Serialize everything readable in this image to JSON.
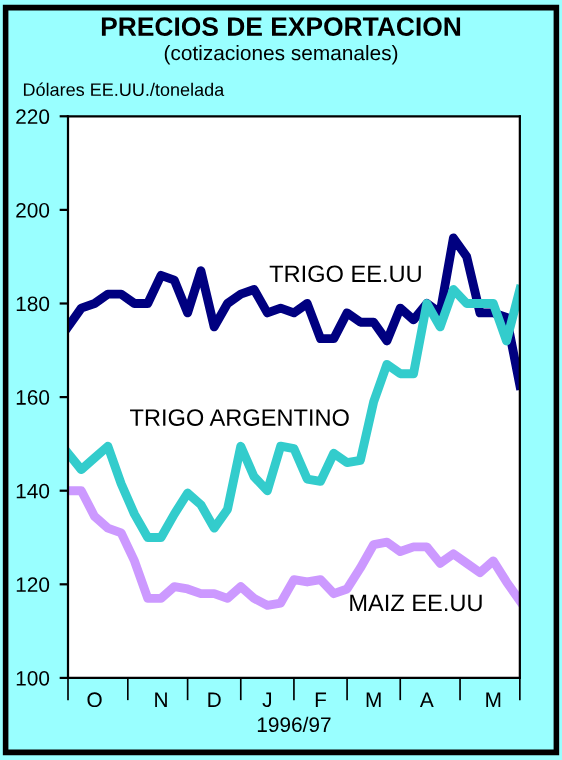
{
  "chart_data": {
    "type": "line",
    "title": "PRECIOS DE EXPORTACION",
    "subtitle": "(cotizaciones semanales)",
    "ylabel": "Dólares EE.UU./tonelada",
    "xlabel": "1996/97",
    "categories": [
      null,
      null,
      "O",
      null,
      null,
      null,
      null,
      "N",
      null,
      null,
      null,
      "D",
      null,
      null,
      null,
      "J",
      null,
      null,
      null,
      "F",
      null,
      null,
      null,
      "M",
      null,
      null,
      null,
      "A",
      null,
      null,
      null,
      null,
      "M",
      null,
      null
    ],
    "ylim": [
      100,
      220
    ],
    "yticks": [
      100,
      120,
      140,
      160,
      180,
      200,
      220
    ],
    "grid": false,
    "legend": false,
    "marker": "none",
    "line_style": "solid",
    "series": [
      {
        "name": "TRIGO EE.UU",
        "color": "#000080",
        "values": [
          175,
          179,
          180,
          182,
          182,
          180,
          180,
          186,
          185,
          178,
          187,
          175,
          180,
          182,
          183,
          178,
          179,
          178,
          180,
          172.5,
          172.5,
          178,
          176,
          176,
          172,
          179,
          176.5,
          180,
          178,
          194,
          190,
          178,
          178,
          177,
          162.5
        ]
      },
      {
        "name": "TRIGO ARGENTINO",
        "color": "#33cccc",
        "values": [
          148,
          144.5,
          147,
          149.5,
          141.5,
          135,
          130,
          130,
          135,
          139.5,
          137,
          132,
          136,
          149.5,
          143,
          140,
          149.5,
          149,
          142.5,
          142,
          148,
          146,
          146.5,
          159,
          167,
          165,
          165,
          180,
          175,
          183,
          180,
          180,
          180,
          172,
          183
        ]
      },
      {
        "name": "MAIZ EE.UU",
        "color": "#cc99ff",
        "values": [
          140,
          140,
          134.5,
          132,
          131,
          125,
          117,
          117,
          119.5,
          119,
          118,
          118,
          117,
          119.5,
          117,
          115.5,
          116,
          121,
          120.5,
          121,
          118,
          119,
          123.5,
          128.5,
          129,
          127,
          128,
          128,
          124.5,
          126.5,
          124.5,
          122.5,
          125,
          120.5,
          116.5
        ]
      }
    ]
  }
}
